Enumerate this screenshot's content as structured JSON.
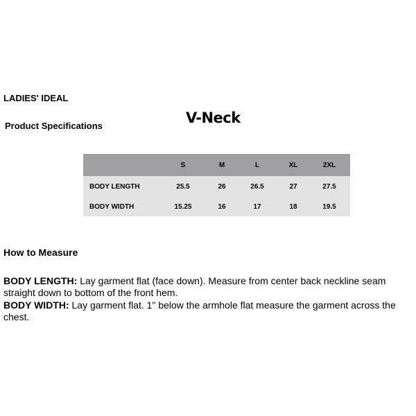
{
  "brand_line": "LADIES' IDEAL",
  "section_title": "Product Specifications",
  "style_name": "V-Neck",
  "table": {
    "columns": [
      "S",
      "M",
      "L",
      "XL",
      "2XL"
    ],
    "rows": [
      {
        "label": "BODY LENGTH",
        "values": [
          "25.5",
          "26",
          "26.5",
          "27",
          "27.5"
        ]
      },
      {
        "label": "BODY WIDTH",
        "values": [
          "15.25",
          "16",
          "17",
          "18",
          "19.5"
        ]
      }
    ],
    "colors": {
      "header": "#a09fa1",
      "body": "#e3e3e3"
    }
  },
  "measure": {
    "title": "How to Measure",
    "items": [
      {
        "term": "BODY LENGTH:",
        "text": " Lay garment flat (face down). Measure from center back neckline seam straight down to bottom of the front hem."
      },
      {
        "term": "BODY WIDTH:",
        "text": " Lay garment flat. 1\" below the armhole flat measure the garment across the chest."
      }
    ]
  }
}
